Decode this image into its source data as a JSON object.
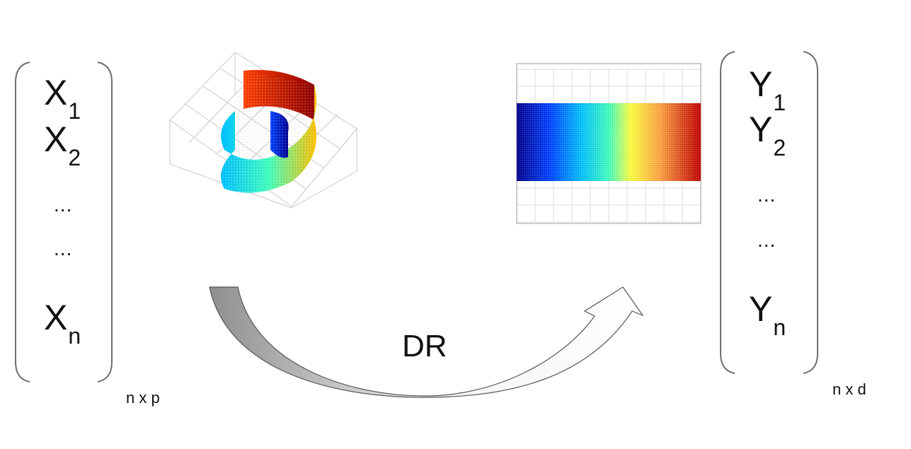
{
  "matrix_x": {
    "entries": [
      {
        "base": "X",
        "sub": "1"
      },
      {
        "base": "X",
        "sub": "2"
      },
      {
        "base": "X",
        "sub": "n"
      }
    ],
    "ellipsis": [
      "...",
      "..."
    ],
    "dims": "n x p"
  },
  "matrix_y": {
    "entries": [
      {
        "base": "Y",
        "sub": "1"
      },
      {
        "base": "Y",
        "sub": "2"
      },
      {
        "base": "Y",
        "sub": "n"
      }
    ],
    "ellipsis": [
      "...",
      "..."
    ],
    "dims": "n x d"
  },
  "arrow_label": "DR",
  "colors": {
    "text": "#111111",
    "bracket": "#6f6f6f",
    "arrow_fill_light": "#f2f2f2",
    "arrow_fill_dark": "#9a9a9a",
    "arrow_stroke": "#555555",
    "colormap": [
      "#00008f",
      "#0040ff",
      "#00c0ff",
      "#40ffbf",
      "#bfff40",
      "#ffc000",
      "#ff4000",
      "#8f0000"
    ]
  }
}
